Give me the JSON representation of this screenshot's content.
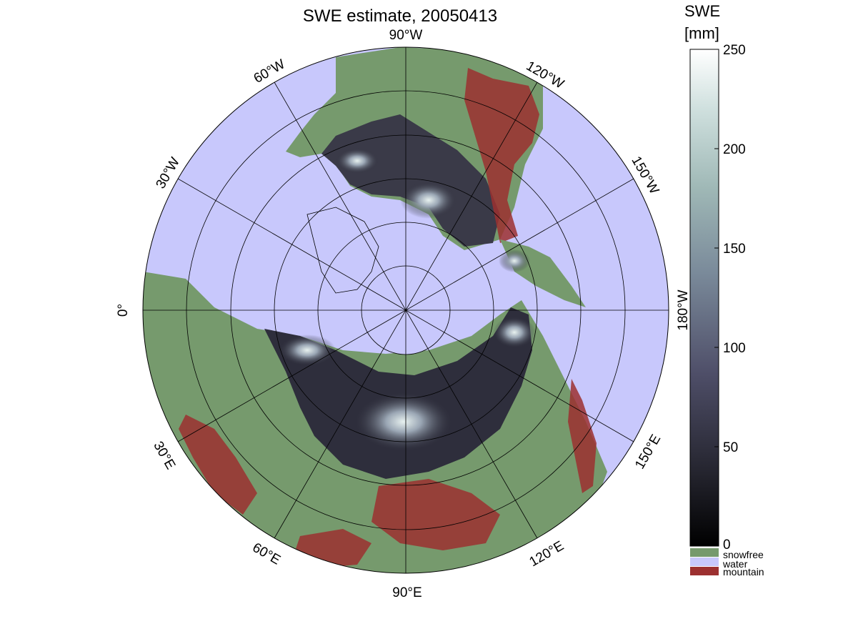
{
  "title": "SWE estimate, 20050413",
  "colorbar": {
    "label_line1": "SWE",
    "label_line2": "[mm]",
    "ticks": [
      "250",
      "200",
      "150",
      "100",
      "50",
      "0"
    ],
    "range": [
      0,
      250
    ]
  },
  "legend": [
    {
      "label": "snowfree",
      "color": "#769a6d"
    },
    {
      "label": "water",
      "color": "#c8c8fc"
    },
    {
      "label": "mountain",
      "color": "#9c3030"
    }
  ],
  "longitude_labels": {
    "lon_90W": "90°W",
    "lon_120W": "120°W",
    "lon_150W": "150°W",
    "lon_180W": "180°W",
    "lon_150E": "150°E",
    "lon_120E": "120°E",
    "lon_90E": "90°E",
    "lon_60E": "60°E",
    "lon_30E": "30°E",
    "lon_0": "0°",
    "lon_30W": "30°W",
    "lon_60W": "60°W"
  },
  "colors": {
    "water": "#c8c8fc",
    "land": "#769a6d",
    "mountain": "#9c3030",
    "snow_low": "#0a0a10",
    "snow_mid": "#5a5a78",
    "snow_high": "#c8e0dc",
    "snow_max": "#ffffff"
  }
}
